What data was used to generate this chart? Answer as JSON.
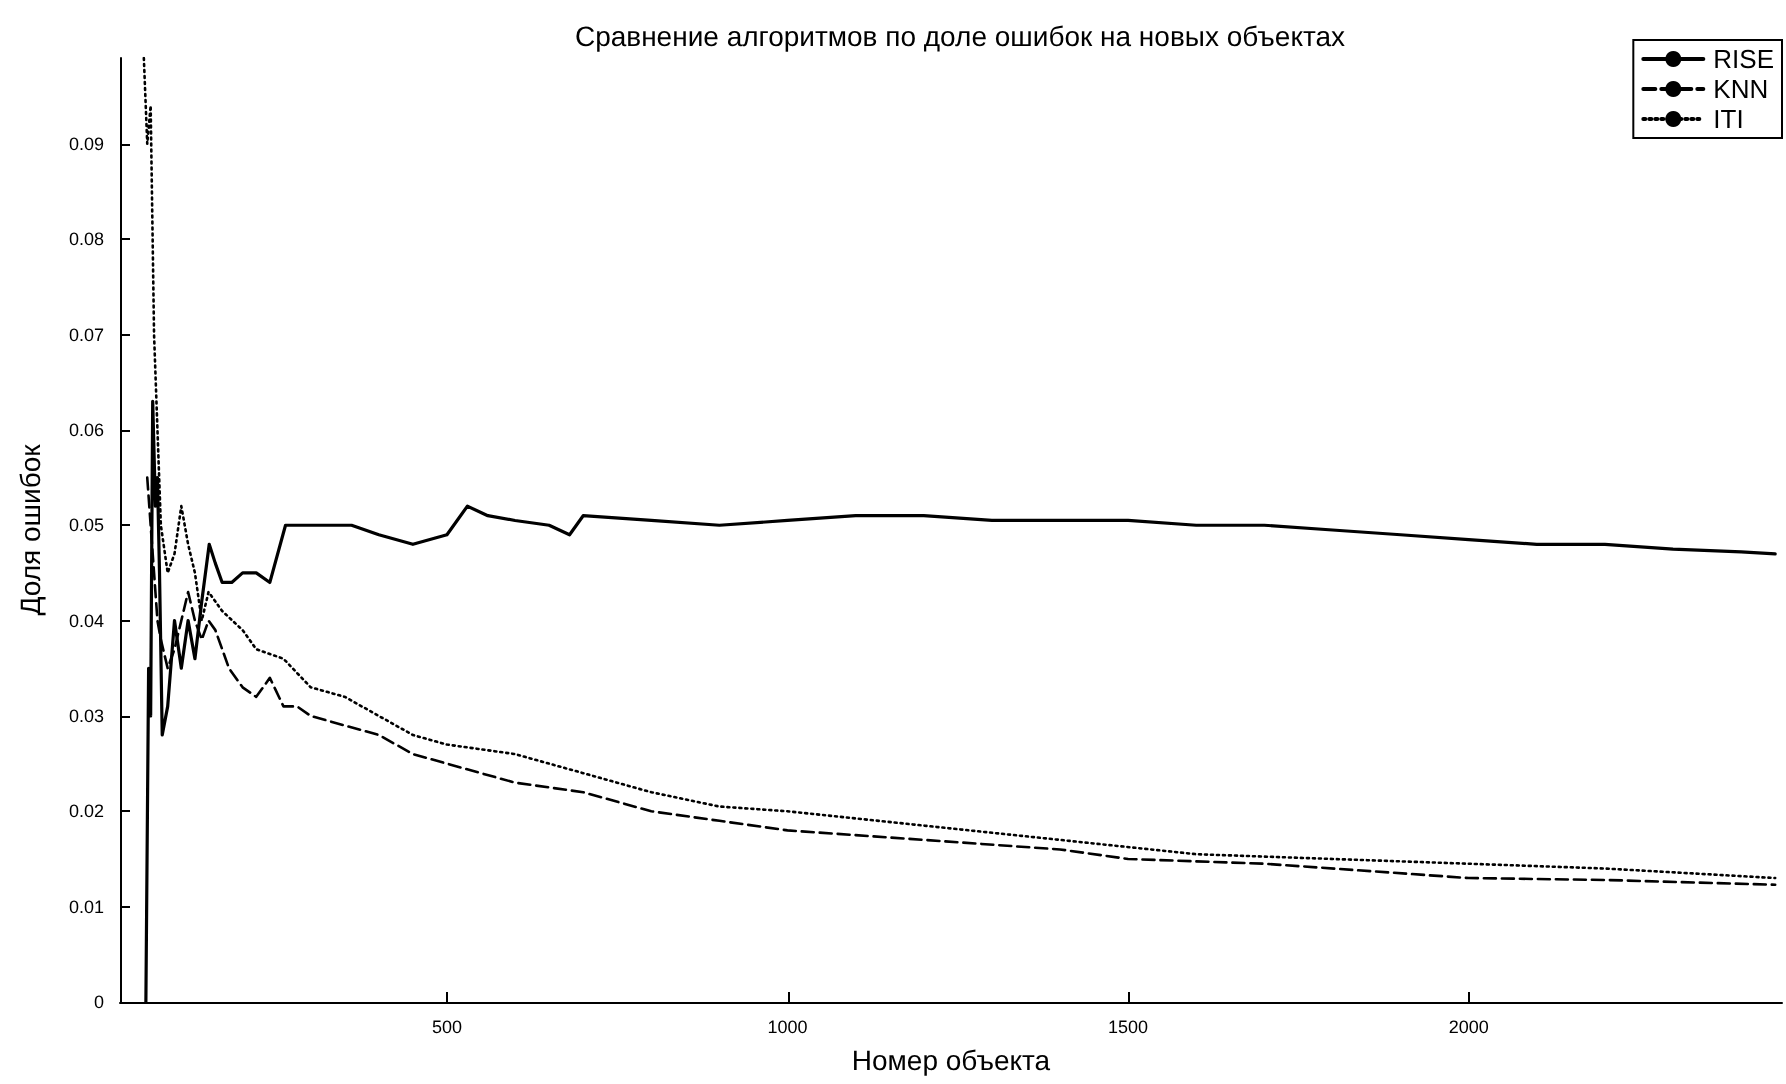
{
  "chart_data": {
    "type": "line",
    "title": "Сравнение алгоритмов по доле ошибок на новых объектах",
    "xlabel": "Номер объекта",
    "ylabel": "Доля ошибок",
    "xlim": [
      20,
      2460
    ],
    "xticks": [
      500,
      1000,
      1500,
      2000
    ],
    "ylim": [
      0,
      0.099
    ],
    "yticks": [
      0,
      0.01,
      0.02,
      0.03,
      0.04,
      0.05,
      0.06,
      0.07,
      0.08,
      0.09
    ],
    "grid": false,
    "legend": "top right",
    "marker": "none",
    "series": [
      {
        "name": "RISE",
        "color": "#000000",
        "line_style": "solid",
        "x": [
          58,
          62,
          65,
          68,
          72,
          75,
          78,
          82,
          90,
          100,
          110,
          120,
          130,
          140,
          151,
          160,
          170,
          184,
          200,
          220,
          240,
          263,
          300,
          330,
          360,
          400,
          450,
          500,
          530,
          560,
          600,
          650,
          680,
          700,
          800,
          900,
          1000,
          1100,
          1200,
          1300,
          1400,
          1500,
          1600,
          1700,
          1800,
          1900,
          2000,
          2100,
          2200,
          2300,
          2400,
          2450
        ],
        "values": [
          0,
          0.035,
          0.03,
          0.063,
          0.052,
          0.055,
          0.045,
          0.028,
          0.031,
          0.04,
          0.035,
          0.04,
          0.036,
          0.042,
          0.048,
          0.046,
          0.044,
          0.044,
          0.045,
          0.045,
          0.044,
          0.05,
          0.05,
          0.05,
          0.05,
          0.049,
          0.048,
          0.049,
          0.052,
          0.051,
          0.0505,
          0.05,
          0.049,
          0.051,
          0.0505,
          0.05,
          0.0505,
          0.051,
          0.051,
          0.0505,
          0.0505,
          0.0505,
          0.05,
          0.05,
          0.0495,
          0.049,
          0.0485,
          0.048,
          0.048,
          0.0475,
          0.0472,
          0.047
        ]
      },
      {
        "name": "KNN",
        "color": "#000000",
        "line_style": "dashed",
        "x": [
          60,
          65,
          70,
          75,
          80,
          90,
          100,
          110,
          120,
          130,
          140,
          150,
          160,
          180,
          200,
          220,
          240,
          260,
          280,
          300,
          350,
          400,
          450,
          500,
          600,
          700,
          800,
          900,
          1000,
          1200,
          1400,
          1500,
          1700,
          2000,
          2200,
          2450
        ],
        "values": [
          0.055,
          0.05,
          0.045,
          0.04,
          0.038,
          0.035,
          0.037,
          0.04,
          0.043,
          0.04,
          0.038,
          0.04,
          0.039,
          0.035,
          0.033,
          0.032,
          0.034,
          0.031,
          0.031,
          0.03,
          0.029,
          0.028,
          0.026,
          0.025,
          0.023,
          0.022,
          0.02,
          0.019,
          0.018,
          0.017,
          0.016,
          0.015,
          0.0145,
          0.013,
          0.0128,
          0.0123
        ]
      },
      {
        "name": "ITI",
        "color": "#000000",
        "line_style": "dotted",
        "x": [
          55,
          60,
          65,
          70,
          75,
          80,
          90,
          100,
          110,
          120,
          130,
          140,
          150,
          170,
          200,
          220,
          260,
          300,
          350,
          400,
          450,
          500,
          600,
          700,
          800,
          900,
          1000,
          1200,
          1400,
          1600,
          1800,
          2000,
          2200,
          2450
        ],
        "values": [
          0.099,
          0.09,
          0.094,
          0.07,
          0.06,
          0.05,
          0.045,
          0.047,
          0.052,
          0.048,
          0.045,
          0.04,
          0.043,
          0.041,
          0.039,
          0.037,
          0.036,
          0.033,
          0.032,
          0.03,
          0.028,
          0.027,
          0.026,
          0.024,
          0.022,
          0.0205,
          0.02,
          0.0185,
          0.017,
          0.0155,
          0.015,
          0.0145,
          0.014,
          0.013
        ]
      }
    ]
  }
}
